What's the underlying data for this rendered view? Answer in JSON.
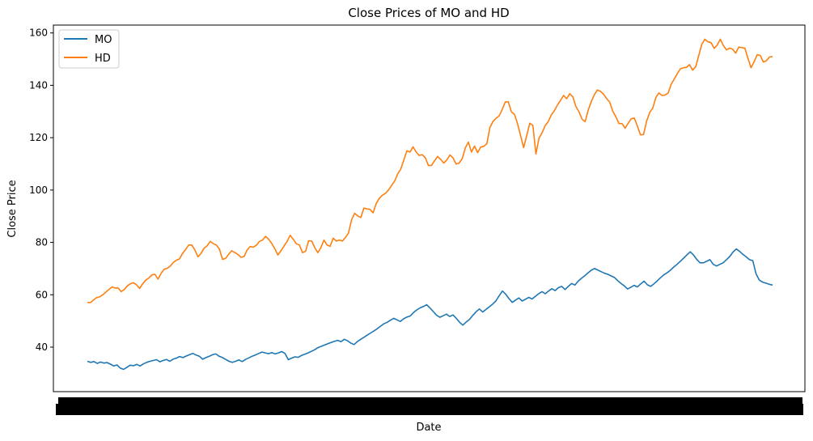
{
  "chart_data": {
    "type": "line",
    "title": "Close Prices of MO and HD",
    "xlabel": "Date",
    "ylabel": "Close Price",
    "ylim": [
      23,
      163
    ],
    "y_ticks": [
      40,
      60,
      80,
      100,
      120,
      140,
      160
    ],
    "x_tick_labels_note": "",
    "legend": {
      "position": "top-left"
    },
    "grid": false,
    "series": [
      {
        "name": "MO",
        "color": "#1f77b4",
        "values": [
          34.6,
          34.2,
          34.5,
          33.8,
          34.3,
          33.9,
          34.1,
          33.5,
          32.8,
          33.2,
          32.0,
          31.5,
          32.3,
          33.1,
          32.9,
          33.4,
          32.8,
          33.6,
          34.2,
          34.6,
          34.9,
          35.2,
          34.4,
          34.9,
          35.3,
          34.6,
          35.4,
          35.8,
          36.4,
          36.0,
          36.6,
          37.1,
          37.6,
          37.0,
          36.5,
          35.4,
          36.0,
          36.5,
          37.1,
          37.4,
          36.5,
          36.0,
          35.3,
          34.6,
          34.2,
          34.6,
          35.1,
          34.5,
          35.3,
          35.9,
          36.5,
          37.0,
          37.6,
          38.1,
          37.8,
          37.5,
          37.9,
          37.4,
          37.8,
          38.3,
          37.6,
          35.2,
          35.8,
          36.3,
          36.1,
          36.8,
          37.3,
          37.8,
          38.4,
          39.0,
          39.8,
          40.3,
          40.8,
          41.3,
          41.8,
          42.2,
          42.6,
          42.1,
          43.0,
          42.4,
          41.5,
          41.0,
          42.2,
          43.0,
          43.8,
          44.6,
          45.4,
          46.2,
          47.0,
          48.0,
          48.9,
          49.5,
          50.3,
          51.0,
          50.4,
          49.8,
          50.8,
          51.5,
          51.9,
          53.2,
          54.2,
          55.0,
          55.5,
          56.2,
          55.0,
          53.6,
          52.2,
          51.4,
          52.0,
          52.6,
          51.7,
          52.3,
          51.0,
          49.5,
          48.4,
          49.6,
          50.6,
          52.1,
          53.5,
          54.6,
          53.4,
          54.4,
          55.4,
          56.4,
          57.6,
          59.6,
          61.4,
          60.2,
          58.5,
          57.1,
          58.0,
          58.8,
          57.6,
          58.3,
          59.0,
          58.4,
          59.4,
          60.4,
          61.2,
          60.4,
          61.4,
          62.3,
          61.6,
          62.7,
          63.2,
          62.0,
          63.2,
          64.3,
          63.7,
          65.2,
          66.3,
          67.3,
          68.4,
          69.4,
          70.0,
          69.4,
          68.8,
          68.2,
          67.8,
          67.2,
          66.6,
          65.4,
          64.3,
          63.4,
          62.2,
          62.9,
          63.6,
          63.0,
          64.2,
          65.2,
          63.8,
          63.2,
          64.2,
          65.3,
          66.5,
          67.6,
          68.4,
          69.4,
          70.6,
          71.6,
          72.8,
          74.0,
          75.2,
          76.4,
          75.2,
          73.5,
          72.2,
          72.2,
          72.8,
          73.4,
          71.6,
          71.0,
          71.6,
          72.2,
          73.4,
          74.6,
          76.3,
          77.5,
          76.6,
          75.4,
          74.5,
          73.4,
          73.0,
          68.0,
          65.6,
          64.8,
          64.4,
          64.0,
          63.7
        ]
      },
      {
        "name": "HD",
        "color": "#ff7f0e",
        "values": [
          57.1,
          57.0,
          58.0,
          58.9,
          59.2,
          60.0,
          61.0,
          62.0,
          63.0,
          62.6,
          62.6,
          61.2,
          62.0,
          63.4,
          64.2,
          64.6,
          63.8,
          62.4,
          64.2,
          65.6,
          66.4,
          67.6,
          67.8,
          66.0,
          68.2,
          69.8,
          70.1,
          71.0,
          72.4,
          73.2,
          73.7,
          75.8,
          77.3,
          79.0,
          79.0,
          77.1,
          74.5,
          75.8,
          77.8,
          78.7,
          80.4,
          79.5,
          79.0,
          77.4,
          73.5,
          73.9,
          75.5,
          76.8,
          76.1,
          75.4,
          74.3,
          74.6,
          77.1,
          78.4,
          78.2,
          78.9,
          80.4,
          80.9,
          82.3,
          81.2,
          79.6,
          77.6,
          75.2,
          76.8,
          78.6,
          80.4,
          82.7,
          81.2,
          79.5,
          79.0,
          76.1,
          76.6,
          80.6,
          80.5,
          78.0,
          76.1,
          78.0,
          80.9,
          79.0,
          78.5,
          81.6,
          80.5,
          80.9,
          80.5,
          81.9,
          83.6,
          88.6,
          91.1,
          90.1,
          89.5,
          93.1,
          92.8,
          92.6,
          91.3,
          94.8,
          96.8,
          98.0,
          98.7,
          100.0,
          101.7,
          103.4,
          106.1,
          108.0,
          111.5,
          115.0,
          114.5,
          116.5,
          114.5,
          113.2,
          113.5,
          112.3,
          109.4,
          109.4,
          111.2,
          112.8,
          111.7,
          110.3,
          111.5,
          113.4,
          112.3,
          109.9,
          110.3,
          112.0,
          116.1,
          118.3,
          114.5,
          116.8,
          114.3,
          116.4,
          116.7,
          117.7,
          123.9,
          126.2,
          127.4,
          128.3,
          130.8,
          133.6,
          133.7,
          129.8,
          128.9,
          125.4,
          120.8,
          116.2,
          120.8,
          125.5,
          124.7,
          113.8,
          119.8,
          121.9,
          124.6,
          126.1,
          128.7,
          130.3,
          132.5,
          134.2,
          136.1,
          134.9,
          136.8,
          135.6,
          131.9,
          129.9,
          127.1,
          126.1,
          130.5,
          133.8,
          136.4,
          138.2,
          137.7,
          136.6,
          134.9,
          133.6,
          130.1,
          128.0,
          125.4,
          125.4,
          123.6,
          125.5,
          127.2,
          127.5,
          124.4,
          121.1,
          121.2,
          126.3,
          129.6,
          131.3,
          135.3,
          137.1,
          136.1,
          136.3,
          137.0,
          140.4,
          142.4,
          144.5,
          146.3,
          146.7,
          146.9,
          147.9,
          145.8,
          147.1,
          151.4,
          155.7,
          157.6,
          156.6,
          156.3,
          154.1,
          155.4,
          157.6,
          155.2,
          153.5,
          154.2,
          153.8,
          152.3,
          154.6,
          154.4,
          154.2,
          150.3,
          146.7,
          149.0,
          151.7,
          151.4,
          148.9,
          149.4,
          150.8,
          151.0
        ]
      }
    ]
  }
}
